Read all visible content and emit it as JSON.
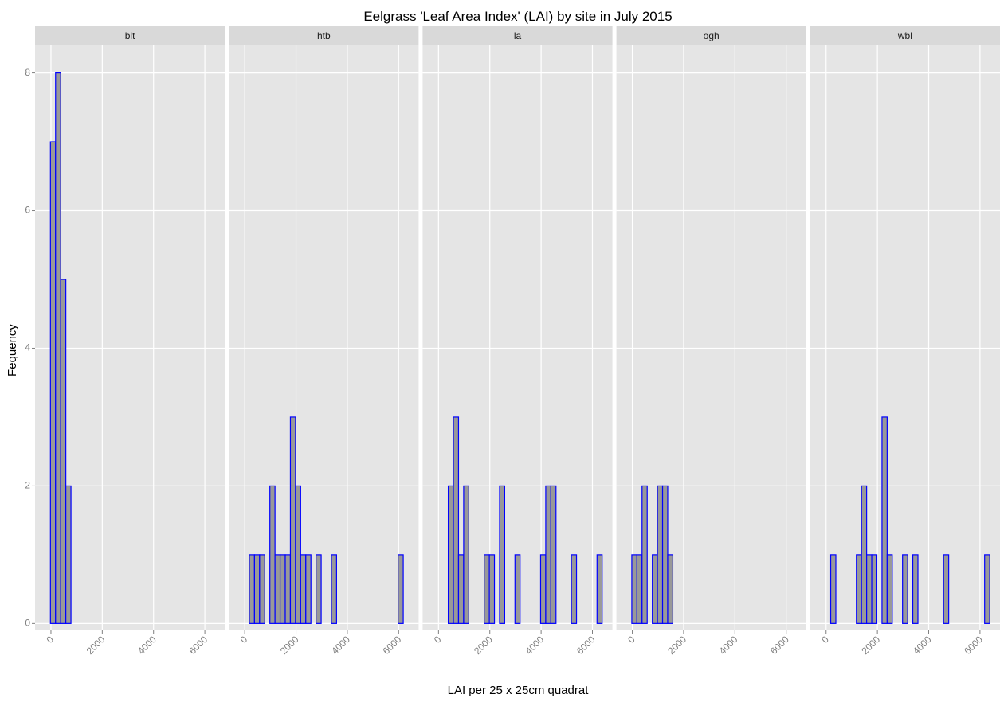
{
  "chart_data": {
    "type": "histogram",
    "title": "Eelgrass 'Leaf Area Index' (LAI) by site in July 2015",
    "xlabel": "LAI per 25 x 25cm quadrat",
    "ylabel": "Fequency",
    "bins": [
      -220,
      -20,
      180,
      380,
      580,
      780,
      980,
      1180,
      1380,
      1580,
      1780,
      1980,
      2180,
      2380,
      2580,
      2780,
      2980,
      3180,
      3380,
      3580,
      3780,
      3980,
      4180,
      4380,
      4580,
      4780,
      4980,
      5180,
      5380,
      5580,
      5780,
      5980,
      6180,
      6380,
      6580
    ],
    "facets": [
      {
        "name": "blt",
        "values": [
          0,
          7,
          8,
          5,
          2,
          0,
          0,
          0,
          0,
          0,
          0,
          0,
          0,
          0,
          0,
          0,
          0,
          0,
          0,
          0,
          0,
          0,
          0,
          0,
          0,
          0,
          0,
          0,
          0,
          0,
          0,
          0,
          0,
          0
        ]
      },
      {
        "name": "htb",
        "values": [
          0,
          0,
          1,
          1,
          1,
          0,
          2,
          1,
          1,
          1,
          3,
          2,
          1,
          1,
          0,
          1,
          0,
          0,
          1,
          0,
          0,
          0,
          0,
          0,
          0,
          0,
          0,
          0,
          0,
          0,
          0,
          1,
          0,
          0
        ]
      },
      {
        "name": "la",
        "values": [
          0,
          0,
          0,
          2,
          3,
          1,
          2,
          0,
          0,
          0,
          1,
          1,
          0,
          2,
          0,
          0,
          1,
          0,
          0,
          0,
          0,
          1,
          2,
          2,
          0,
          0,
          0,
          1,
          0,
          0,
          0,
          0,
          1,
          0
        ]
      },
      {
        "name": "ogh",
        "values": [
          0,
          1,
          1,
          2,
          0,
          1,
          2,
          2,
          1,
          0,
          0,
          0,
          0,
          0,
          0,
          0,
          0,
          0,
          0,
          0,
          0,
          0,
          0,
          0,
          0,
          0,
          0,
          0,
          0,
          0,
          0,
          0,
          0,
          0
        ]
      },
      {
        "name": "wbl",
        "values": [
          0,
          0,
          1,
          0,
          0,
          0,
          0,
          1,
          2,
          1,
          1,
          0,
          3,
          1,
          0,
          0,
          1,
          0,
          1,
          0,
          0,
          0,
          0,
          0,
          1,
          0,
          0,
          0,
          0,
          0,
          0,
          0,
          1,
          0
        ]
      }
    ],
    "fill": "#999999",
    "edge_color": "#0000ff",
    "xlim": [
      -620,
      6780
    ],
    "ylim": [
      -0.1,
      8.4
    ],
    "xticks": [
      0,
      2000,
      4000,
      6000
    ],
    "yticks": [
      0,
      2,
      4,
      6,
      8
    ],
    "grid": true
  }
}
